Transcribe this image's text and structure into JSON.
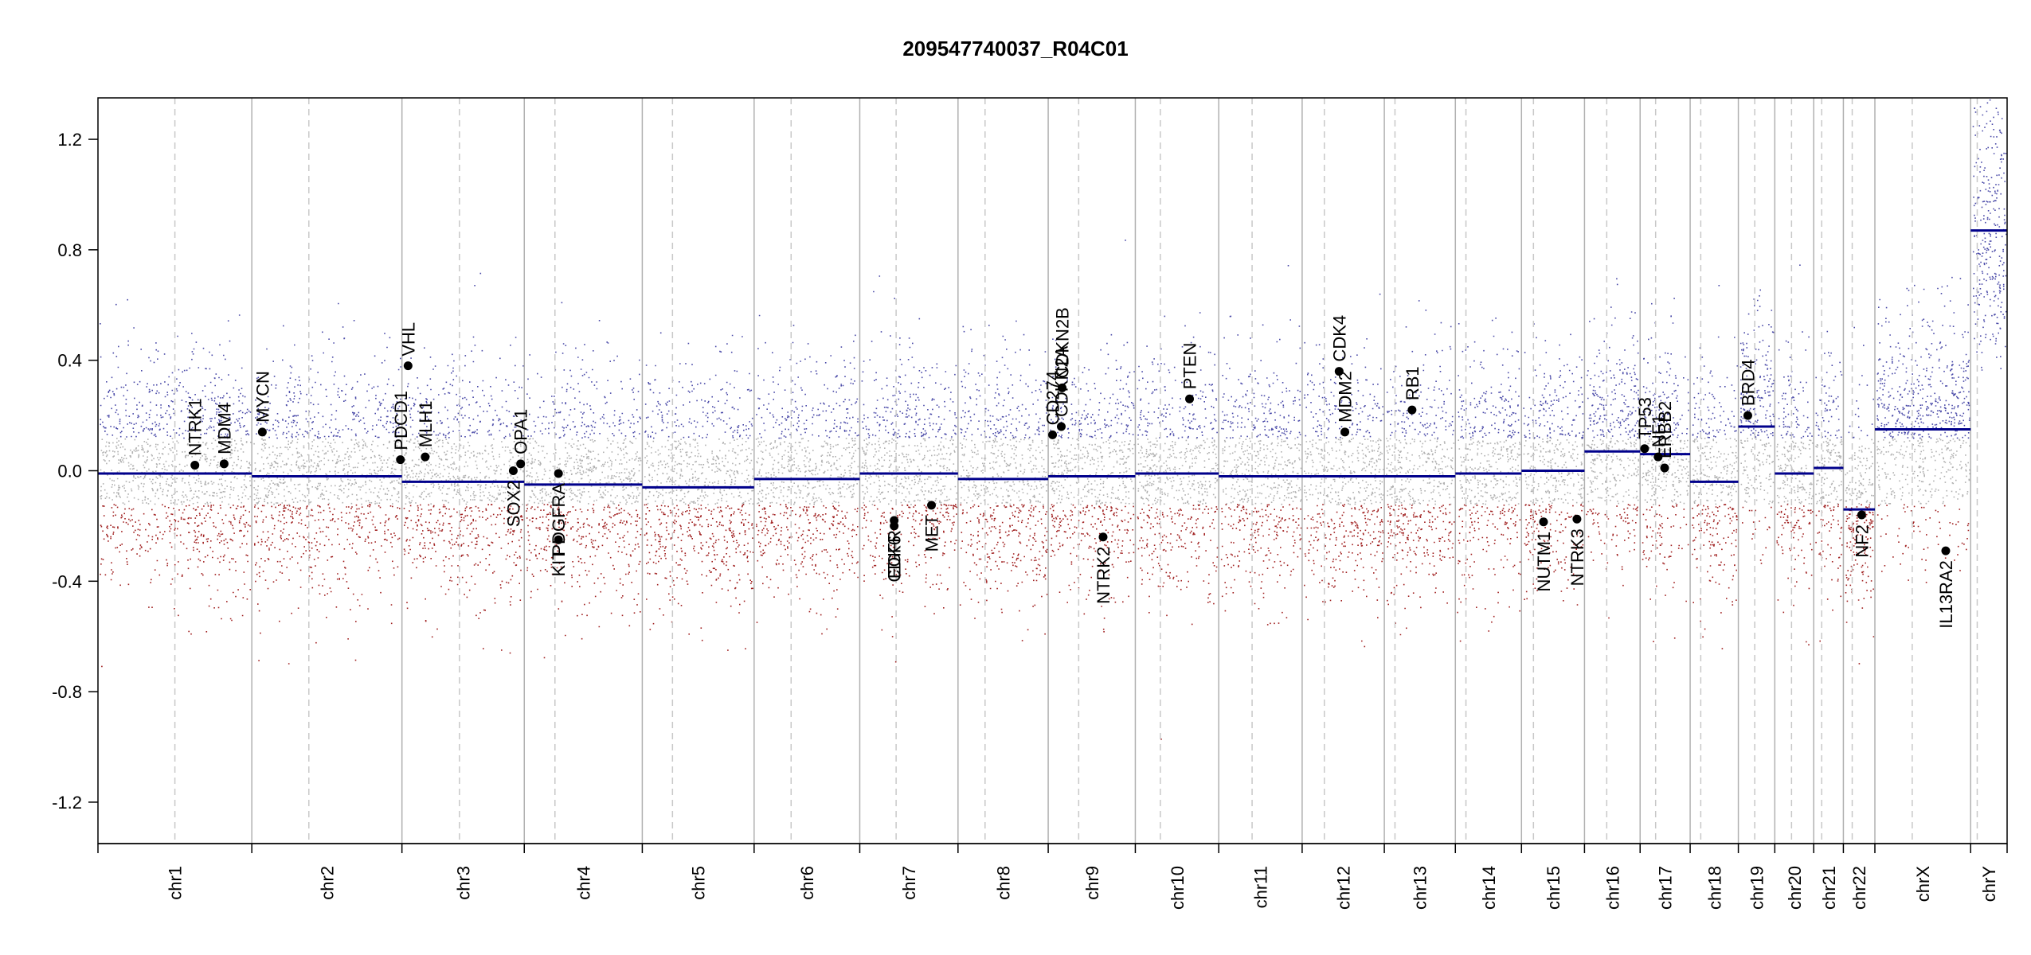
{
  "chart_data": {
    "type": "scatter",
    "title": "209547740037_R04C01",
    "xlabel": "",
    "ylabel": "",
    "ylim": [
      -1.35,
      1.35
    ],
    "y_ticks": [
      "1.2",
      "0.8",
      "0.4",
      "0.0",
      "-0.4",
      "-0.8",
      "-1.2"
    ],
    "y_tick_values": [
      1.2,
      0.8,
      0.4,
      0.0,
      -0.4,
      -0.8,
      -1.2
    ],
    "grid": false,
    "legend": "none",
    "colors": {
      "segment": "#00008B",
      "gain": "#4a4aa8",
      "loss": "#a02020",
      "neutral": "#b0b0b0",
      "chrom_line": "#b0b0b0",
      "centromere_line": "#c8c8c8",
      "gene_point": "#000000"
    },
    "chromosomes": [
      {
        "name": "chr1",
        "size": 249,
        "centromere": 0.5,
        "segment": -0.01
      },
      {
        "name": "chr2",
        "size": 243,
        "centromere": 0.38,
        "segment": -0.02
      },
      {
        "name": "chr3",
        "size": 198,
        "centromere": 0.47,
        "segment": -0.04
      },
      {
        "name": "chr4",
        "size": 191,
        "centromere": 0.26,
        "segment": -0.05
      },
      {
        "name": "chr5",
        "size": 181,
        "centromere": 0.27,
        "segment": -0.06
      },
      {
        "name": "chr6",
        "size": 171,
        "centromere": 0.35,
        "segment": -0.03
      },
      {
        "name": "chr7",
        "size": 159,
        "centromere": 0.37,
        "segment": -0.01
      },
      {
        "name": "chr8",
        "size": 146,
        "centromere": 0.3,
        "segment": -0.03
      },
      {
        "name": "chr9",
        "size": 141,
        "centromere": 0.35,
        "segment": -0.02
      },
      {
        "name": "chr10",
        "size": 135,
        "centromere": 0.3,
        "segment": -0.01
      },
      {
        "name": "chr11",
        "size": 135,
        "centromere": 0.4,
        "segment": -0.02
      },
      {
        "name": "chr12",
        "size": 133,
        "centromere": 0.27,
        "segment": -0.02
      },
      {
        "name": "chr13",
        "size": 115,
        "centromere": 0.15,
        "segment": -0.02
      },
      {
        "name": "chr14",
        "size": 107,
        "centromere": 0.16,
        "segment": -0.01
      },
      {
        "name": "chr15",
        "size": 102,
        "centromere": 0.19,
        "segment": 0.0
      },
      {
        "name": "chr16",
        "size": 90,
        "centromere": 0.4,
        "segment": 0.07
      },
      {
        "name": "chr17",
        "size": 81,
        "centromere": 0.31,
        "segment": 0.06
      },
      {
        "name": "chr18",
        "size": 78,
        "centromere": 0.22,
        "segment": -0.04
      },
      {
        "name": "chr19",
        "size": 59,
        "centromere": 0.45,
        "segment": 0.16
      },
      {
        "name": "chr20",
        "size": 63,
        "centromere": 0.43,
        "segment": -0.01
      },
      {
        "name": "chr21",
        "size": 48,
        "centromere": 0.27,
        "segment": 0.01
      },
      {
        "name": "chr22",
        "size": 51,
        "centromere": 0.28,
        "segment": -0.14
      },
      {
        "name": "chrX",
        "size": 155,
        "centromere": 0.39,
        "segment": 0.15
      },
      {
        "name": "chrY",
        "size": 59,
        "centromere": 0.18,
        "segment": 0.87
      }
    ],
    "genes": [
      {
        "name": "NTRK1",
        "chr": "chr1",
        "pos": 0.63,
        "value": 0.02,
        "label_side": "up"
      },
      {
        "name": "MDM4",
        "chr": "chr1",
        "pos": 0.82,
        "value": 0.025,
        "label_side": "up"
      },
      {
        "name": "MYCN",
        "chr": "chr2",
        "pos": 0.07,
        "value": 0.14,
        "label_side": "up"
      },
      {
        "name": "PDCD1",
        "chr": "chr2",
        "pos": 0.99,
        "value": 0.04,
        "label_side": "up"
      },
      {
        "name": "VHL",
        "chr": "chr3",
        "pos": 0.05,
        "value": 0.38,
        "label_side": "up"
      },
      {
        "name": "MLH1",
        "chr": "chr3",
        "pos": 0.19,
        "value": 0.05,
        "label_side": "up"
      },
      {
        "name": "SOX2",
        "chr": "chr3",
        "pos": 0.91,
        "value": 0.0,
        "label_side": "down"
      },
      {
        "name": "OPA1",
        "chr": "chr3",
        "pos": 0.97,
        "value": 0.025,
        "label_side": "up"
      },
      {
        "name": "PDGFRA",
        "chr": "chr4",
        "pos": 0.29,
        "value": -0.01,
        "label_side": "down"
      },
      {
        "name": "KIT",
        "chr": "chr4",
        "pos": 0.29,
        "value": -0.25,
        "label_side": "down"
      },
      {
        "name": "EGFR",
        "chr": "chr7",
        "pos": 0.35,
        "value": -0.18,
        "label_side": "down"
      },
      {
        "name": "CDK6",
        "chr": "chr7",
        "pos": 0.35,
        "value": -0.2,
        "label_side": "down"
      },
      {
        "name": "MET",
        "chr": "chr7",
        "pos": 0.73,
        "value": -0.125,
        "label_side": "down"
      },
      {
        "name": "CD274",
        "chr": "chr9",
        "pos": 0.05,
        "value": 0.13,
        "label_side": "up"
      },
      {
        "name": "CDKN2A",
        "chr": "chr9",
        "pos": 0.15,
        "value": 0.16,
        "label_side": "up"
      },
      {
        "name": "CDKN2B",
        "chr": "chr9",
        "pos": 0.16,
        "value": 0.3,
        "label_side": "up"
      },
      {
        "name": "NTRK2",
        "chr": "chr9",
        "pos": 0.63,
        "value": -0.24,
        "label_side": "down"
      },
      {
        "name": "PTEN",
        "chr": "chr10",
        "pos": 0.65,
        "value": 0.26,
        "label_side": "up"
      },
      {
        "name": "MDM2",
        "chr": "chr12",
        "pos": 0.52,
        "value": 0.14,
        "label_side": "up"
      },
      {
        "name": "CDK4",
        "chr": "chr12",
        "pos": 0.45,
        "value": 0.36,
        "label_side": "up"
      },
      {
        "name": "RB1",
        "chr": "chr13",
        "pos": 0.39,
        "value": 0.22,
        "label_side": "up"
      },
      {
        "name": "NUTM1",
        "chr": "chr15",
        "pos": 0.35,
        "value": -0.185,
        "label_side": "down"
      },
      {
        "name": "NTRK3",
        "chr": "chr15",
        "pos": 0.88,
        "value": -0.175,
        "label_side": "down"
      },
      {
        "name": "TP53",
        "chr": "chr17",
        "pos": 0.09,
        "value": 0.08,
        "label_side": "up"
      },
      {
        "name": "NF1",
        "chr": "chr17",
        "pos": 0.36,
        "value": 0.05,
        "label_side": "up"
      },
      {
        "name": "ERBB2",
        "chr": "chr17",
        "pos": 0.49,
        "value": 0.01,
        "label_side": "up"
      },
      {
        "name": "BRD4",
        "chr": "chr19",
        "pos": 0.26,
        "value": 0.2,
        "label_side": "up"
      },
      {
        "name": "NF2",
        "chr": "chr22",
        "pos": 0.58,
        "value": -0.16,
        "label_side": "down"
      },
      {
        "name": "IL13RA2",
        "chr": "chrX",
        "pos": 0.74,
        "value": -0.29,
        "label_side": "down"
      }
    ]
  }
}
